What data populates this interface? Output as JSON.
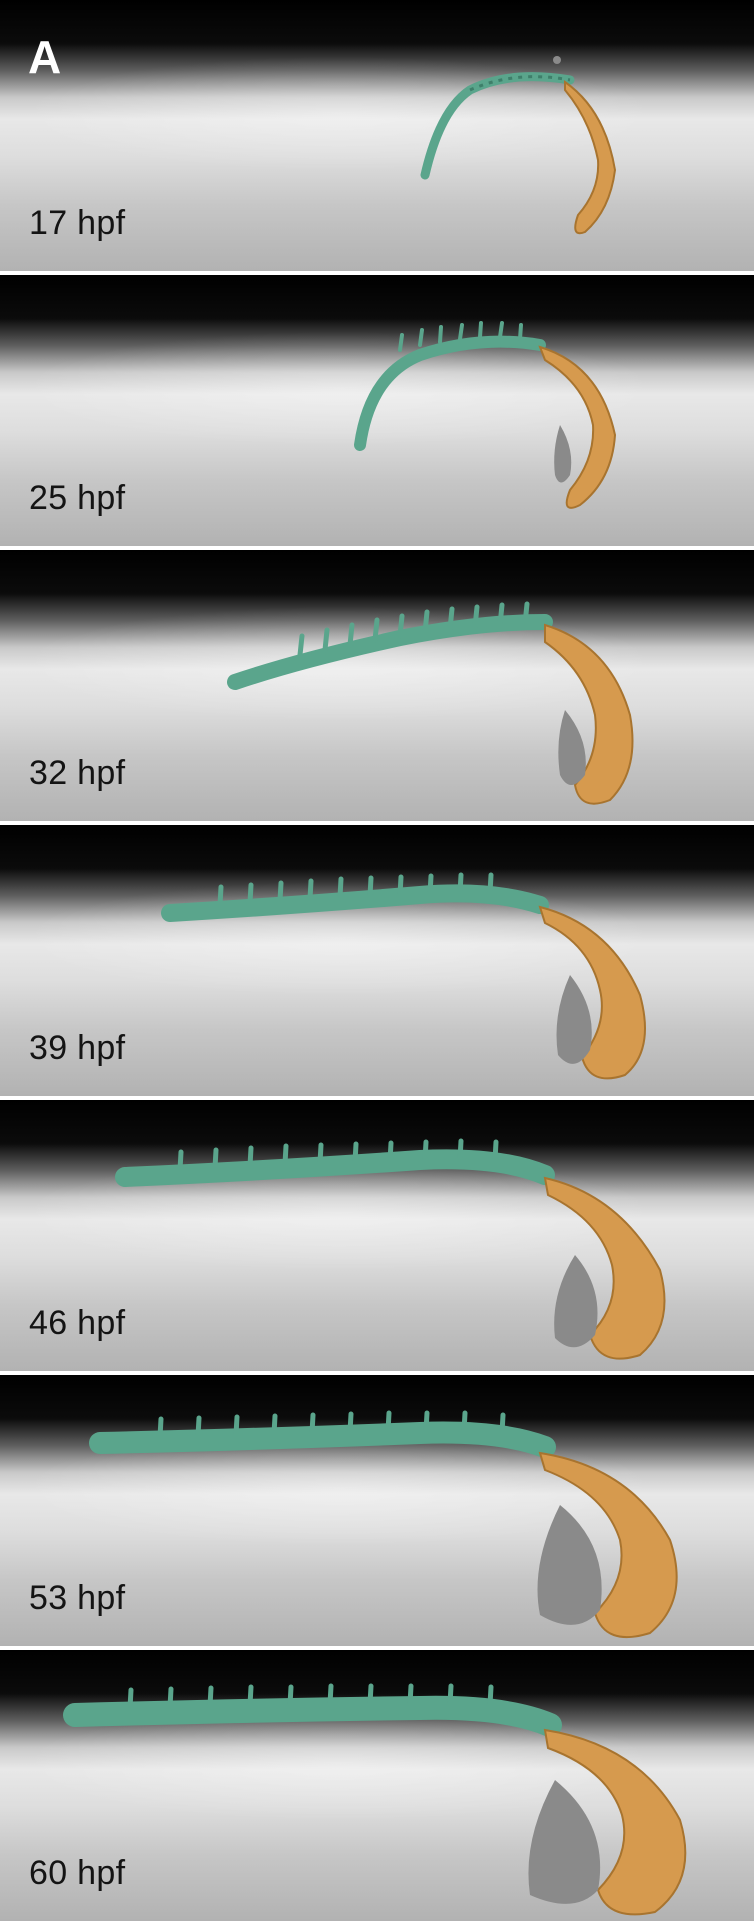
{
  "figure": {
    "panel_letter": "A",
    "colors": {
      "trunk": "#5aa58c",
      "head": "#d69a4e",
      "gray_tissue": "#8a8a8a"
    },
    "panels": [
      {
        "label": "17 hpf"
      },
      {
        "label": "25 hpf"
      },
      {
        "label": "32 hpf"
      },
      {
        "label": "39 hpf"
      },
      {
        "label": "46 hpf"
      },
      {
        "label": "53 hpf"
      },
      {
        "label": "60 hpf"
      }
    ]
  }
}
